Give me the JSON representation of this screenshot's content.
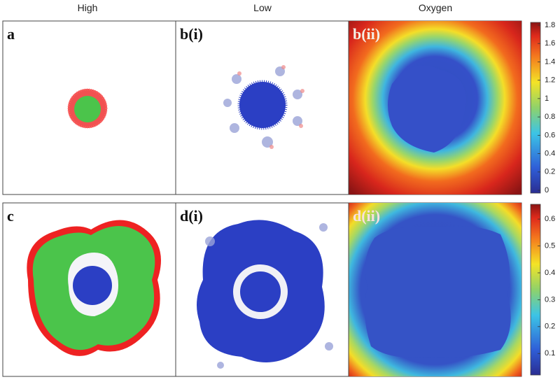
{
  "columns": [
    "High",
    "Low",
    "Oxygen"
  ],
  "panels": [
    {
      "label": "a"
    },
    {
      "label": "b(i)"
    },
    {
      "label": "b(ii)"
    },
    {
      "label": "c"
    },
    {
      "label": "d(i)"
    },
    {
      "label": "d(ii)"
    }
  ],
  "colorbars": [
    {
      "lim": [
        -0.03,
        1.83
      ],
      "ticks": [
        0,
        0.2,
        0.4,
        0.6,
        0.8,
        1,
        1.2,
        1.4,
        1.6,
        1.8
      ]
    },
    {
      "lim": [
        0.02,
        0.655
      ],
      "ticks": [
        0.1,
        0.2,
        0.3,
        0.4,
        0.5,
        0.6
      ]
    }
  ]
}
